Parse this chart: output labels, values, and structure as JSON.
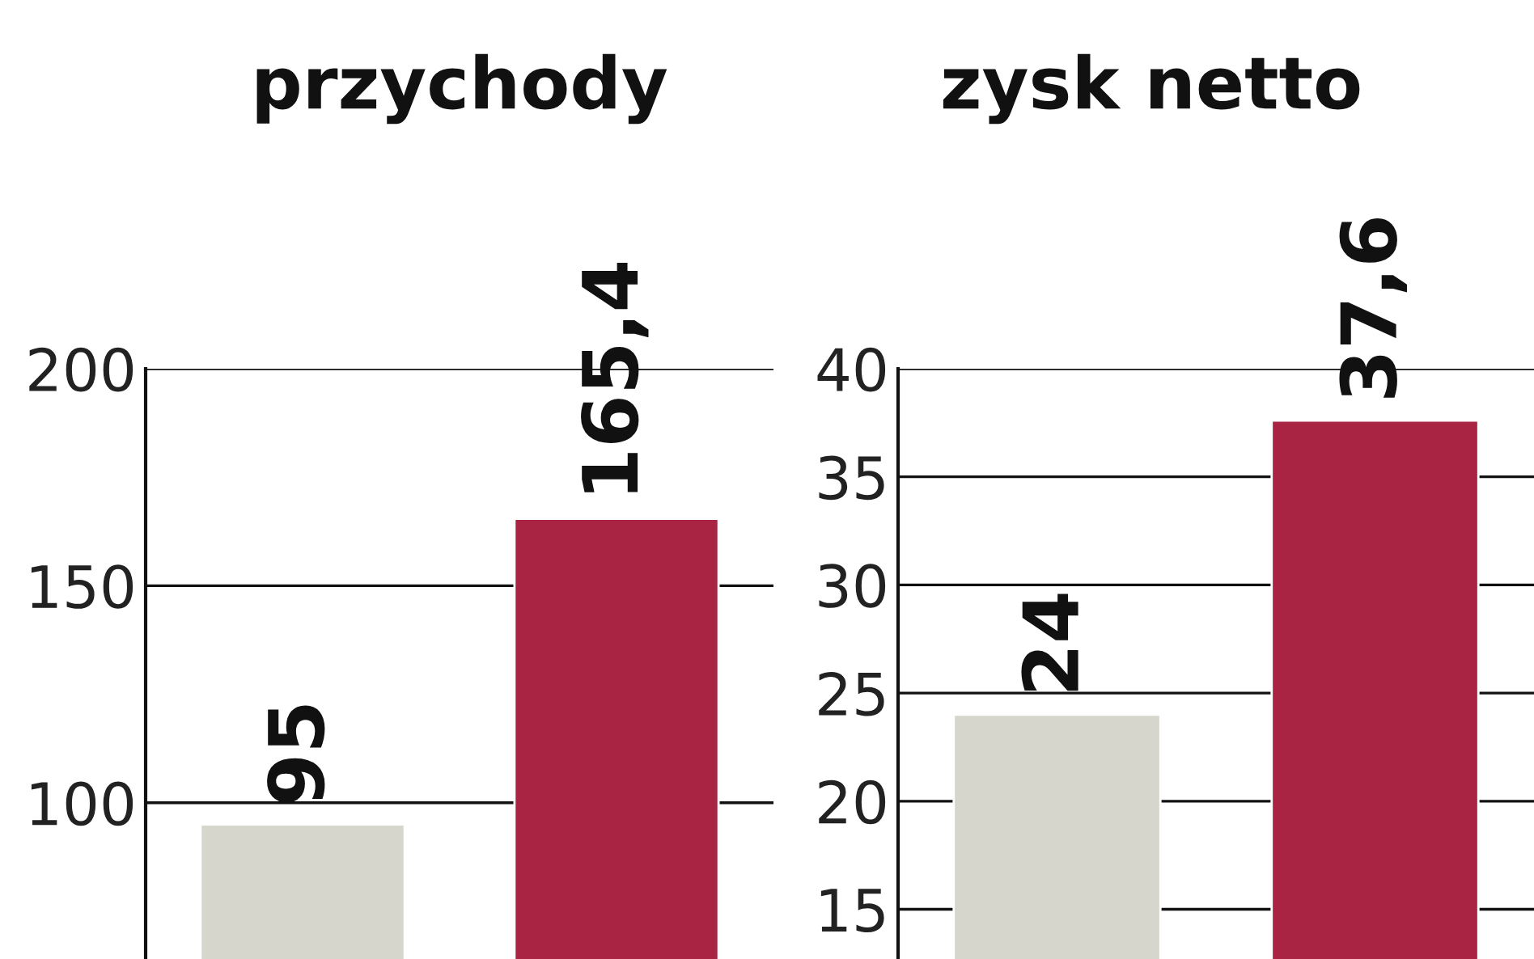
{
  "chart_data": [
    {
      "type": "bar",
      "title": "przychody",
      "categories": [
        null,
        null
      ],
      "values": [
        95,
        165.4
      ],
      "colors": [
        "#d6d6cc",
        "#a82442"
      ],
      "ylim": [
        64,
        200
      ],
      "yticks": [
        100,
        150,
        200
      ],
      "grid": "y",
      "data_labels": true,
      "value_labels": [
        "95",
        "165,4"
      ]
    },
    {
      "type": "bar",
      "title": "zysk netto",
      "categories": [
        null,
        null
      ],
      "values": [
        24,
        37.6
      ],
      "colors": [
        "#d6d6cc",
        "#a82442"
      ],
      "ylim": [
        12.7,
        40
      ],
      "yticks": [
        15,
        20,
        25,
        30,
        35,
        40
      ],
      "grid": "y",
      "data_labels": true,
      "value_labels": [
        "24",
        "37,6"
      ]
    }
  ]
}
